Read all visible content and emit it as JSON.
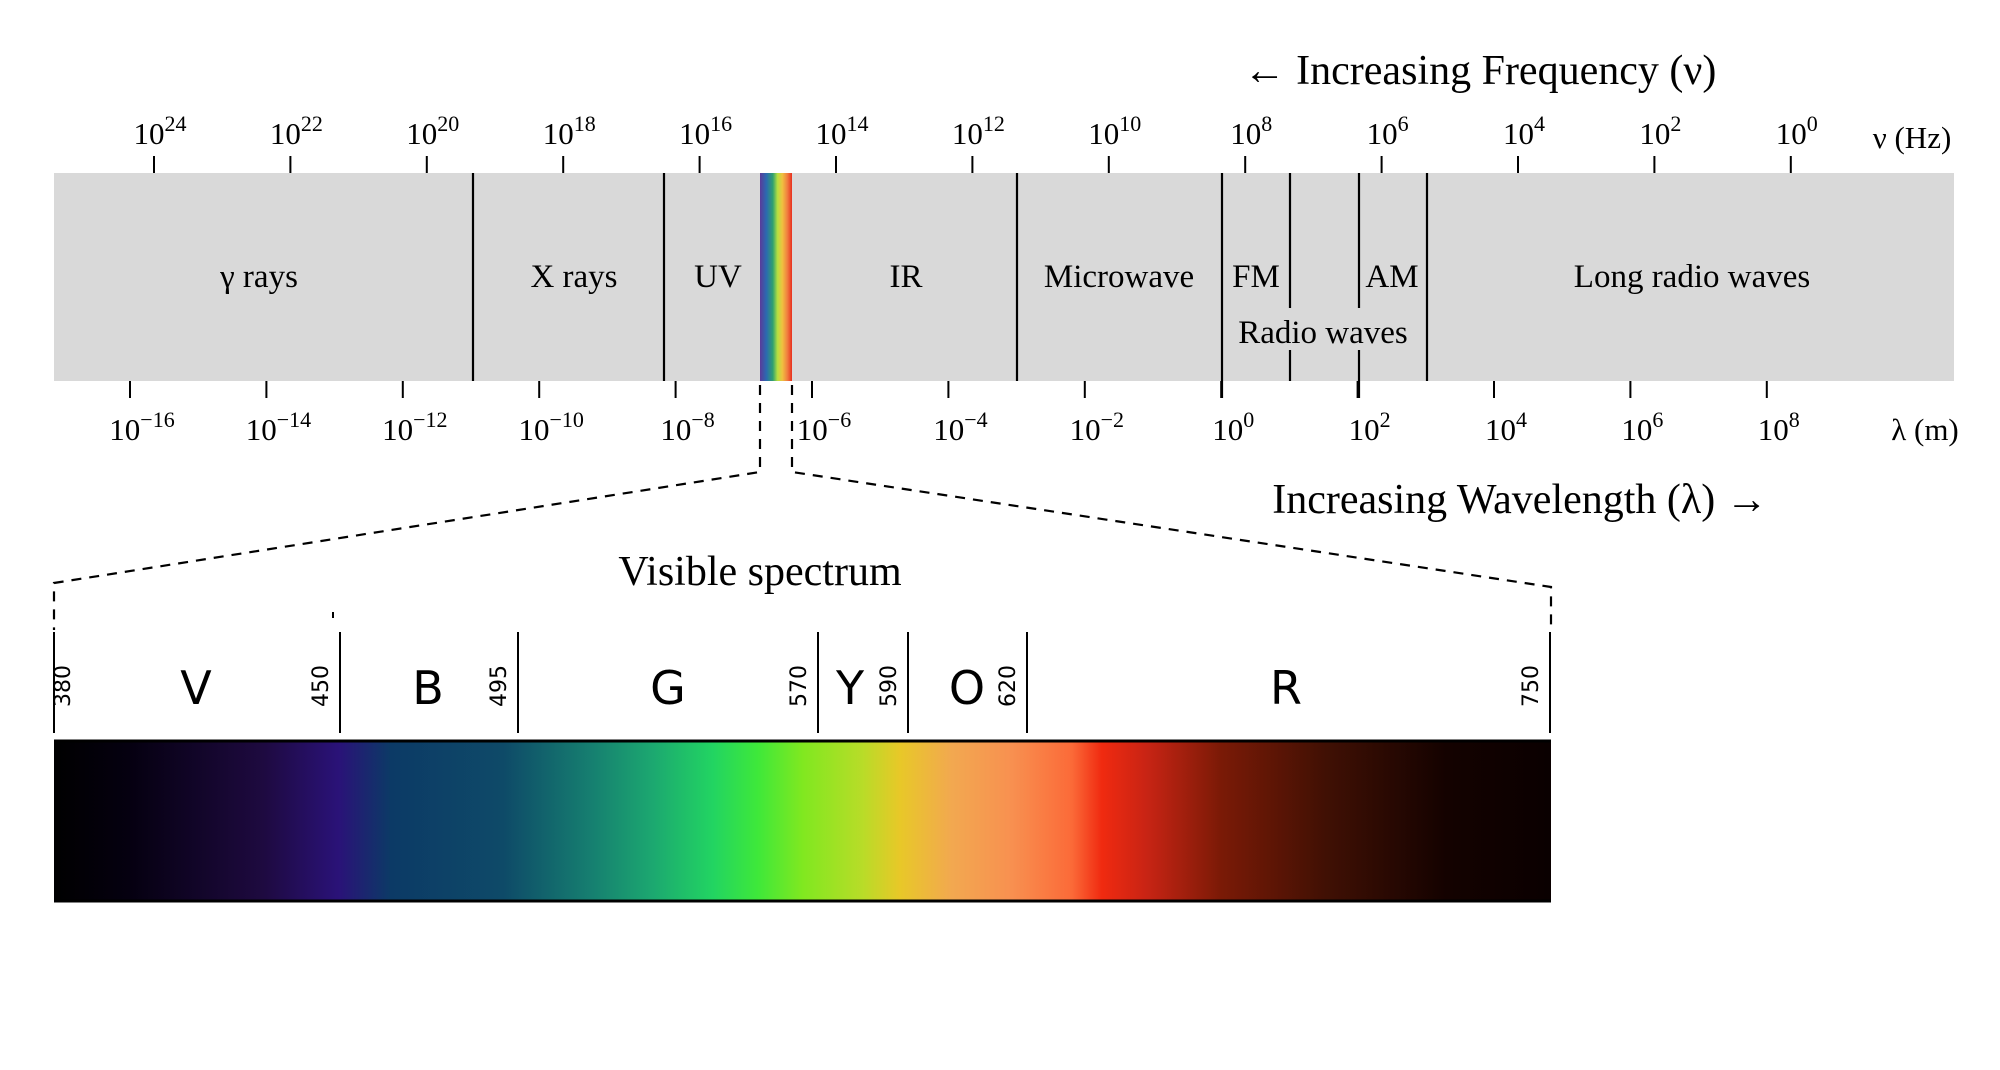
{
  "frequency_axis": {
    "title": "← Increasing Frequency (ν)",
    "unit_label": "ν (Hz)",
    "ticks": [
      {
        "base": "10",
        "exp": "24"
      },
      {
        "base": "10",
        "exp": "22"
      },
      {
        "base": "10",
        "exp": "20"
      },
      {
        "base": "10",
        "exp": "18"
      },
      {
        "base": "10",
        "exp": "16"
      },
      {
        "base": "10",
        "exp": "14"
      },
      {
        "base": "10",
        "exp": "12"
      },
      {
        "base": "10",
        "exp": "10"
      },
      {
        "base": "10",
        "exp": "8"
      },
      {
        "base": "10",
        "exp": "6"
      },
      {
        "base": "10",
        "exp": "4"
      },
      {
        "base": "10",
        "exp": "2"
      },
      {
        "base": "10",
        "exp": "0"
      }
    ]
  },
  "wavelength_axis": {
    "title": "Increasing Wavelength (λ) →",
    "unit_label": "λ (m)",
    "ticks": [
      {
        "base": "10",
        "exp": "−16"
      },
      {
        "base": "10",
        "exp": "−14"
      },
      {
        "base": "10",
        "exp": "−12"
      },
      {
        "base": "10",
        "exp": "−10"
      },
      {
        "base": "10",
        "exp": "−8"
      },
      {
        "base": "10",
        "exp": "−6"
      },
      {
        "base": "10",
        "exp": "−4"
      },
      {
        "base": "10",
        "exp": "−2"
      },
      {
        "base": "10",
        "exp": "0"
      },
      {
        "base": "10",
        "exp": "2"
      },
      {
        "base": "10",
        "exp": "4"
      },
      {
        "base": "10",
        "exp": "6"
      },
      {
        "base": "10",
        "exp": "8"
      }
    ]
  },
  "regions": [
    {
      "label": "γ rays"
    },
    {
      "label": "X rays"
    },
    {
      "label": "UV"
    },
    {
      "label": "IR"
    },
    {
      "label": "Microwave"
    },
    {
      "label": "FM"
    },
    {
      "label": "AM"
    },
    {
      "label": "Long radio waves"
    },
    {
      "label": "Radio waves"
    }
  ],
  "visible": {
    "title": "Visible spectrum",
    "boundaries_nm": [
      "380",
      "450",
      "495",
      "570",
      "590",
      "620",
      "750"
    ],
    "bands": [
      "V",
      "B",
      "G",
      "Y",
      "O",
      "R"
    ]
  },
  "colors": {
    "band_fill": "#d9d9d9",
    "line": "#000000"
  }
}
